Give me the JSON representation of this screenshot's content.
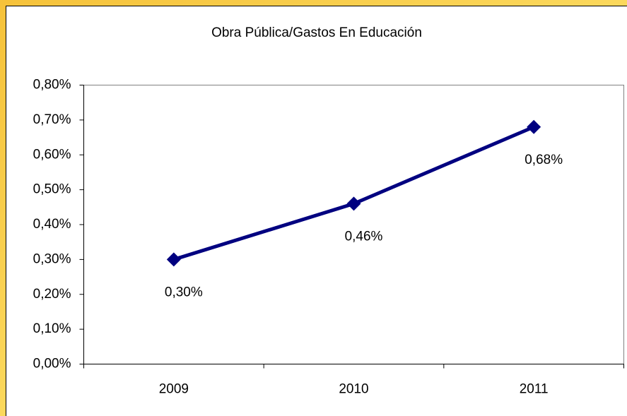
{
  "chart_data": {
    "type": "line",
    "title": "Obra Pública/Gastos En Educación",
    "categories": [
      "2009",
      "2010",
      "2011"
    ],
    "series": [
      {
        "name": "Obra Pública/Gastos En Educación",
        "color": "#000080",
        "values": [
          0.3,
          0.46,
          0.68
        ],
        "value_labels": [
          "0,30%",
          "0,46%",
          "0,68%"
        ]
      }
    ],
    "ylim": [
      0,
      0.8
    ],
    "yticks": [
      {
        "value": 0,
        "label": "0,00%"
      },
      {
        "value": 0.1,
        "label": "0,10%"
      },
      {
        "value": 0.2,
        "label": "0,20%"
      },
      {
        "value": 0.3,
        "label": "0,30%"
      },
      {
        "value": 0.4,
        "label": "0,40%"
      },
      {
        "value": 0.5,
        "label": "0,50%"
      },
      {
        "value": 0.6,
        "label": "0,60%"
      },
      {
        "value": 0.7,
        "label": "0,70%"
      },
      {
        "value": 0.8,
        "label": "0,80%"
      }
    ],
    "grid": false
  }
}
